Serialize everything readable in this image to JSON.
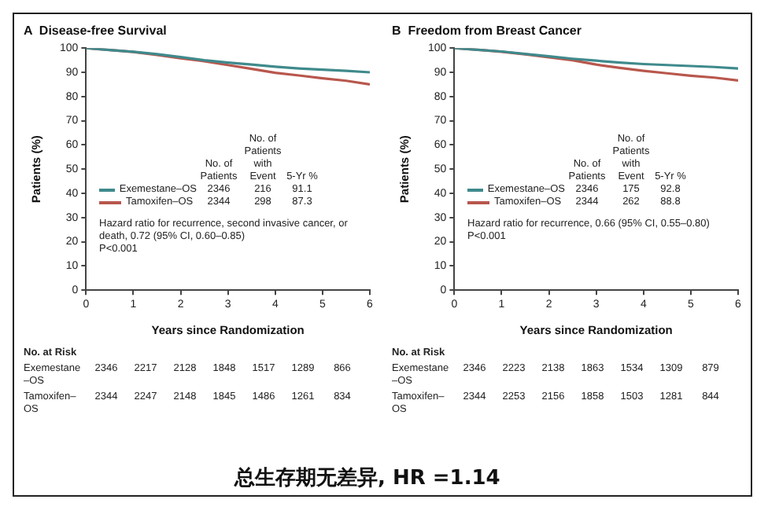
{
  "chart_data": [
    {
      "type": "line",
      "title": "A  Disease-free Survival",
      "xlabel": "Years since Randomization",
      "ylabel": "Patients (%)",
      "xlim": [
        0,
        6
      ],
      "xticks": [
        0,
        1,
        2,
        3,
        4,
        5,
        6
      ],
      "ylim": [
        0,
        100
      ],
      "yticks": [
        0,
        10,
        20,
        30,
        40,
        50,
        60,
        70,
        80,
        90,
        100
      ],
      "grid": false,
      "legend": "bottom left",
      "marker": "none",
      "line_style": "solid",
      "x": [
        0,
        0.5,
        1,
        1.5,
        2,
        2.5,
        3,
        3.5,
        4,
        4.5,
        5,
        5.5,
        6
      ],
      "series": [
        {
          "name": "Exemestane–OS",
          "color": "#3f8a8c",
          "values": [
            100,
            99.2,
            98.5,
            97.5,
            96.3,
            95,
            94,
            93.2,
            92.3,
            91.6,
            91.1,
            90.6,
            90
          ]
        },
        {
          "name": "Tamoxifen–OS",
          "color": "#b8574d",
          "values": [
            100,
            99.2,
            98.4,
            97.2,
            95.8,
            94.6,
            93,
            91.4,
            89.8,
            88.7,
            87.5,
            86.5,
            85
          ]
        }
      ],
      "annotations": [
        "No. of Patients",
        "No. of Patients with Event",
        "5-Yr %",
        "2346",
        "216",
        "91.1",
        "2344",
        "298",
        "87.3",
        "Hazard ratio for recurrence, second invasive cancer, or death, 0.72 (95% CI, 0.60–0.85)",
        "P<0.001",
        "No. at Risk",
        "2346",
        "2217",
        "2128",
        "1848",
        "1517",
        "1289",
        "866",
        "2344",
        "2247",
        "2148",
        "1845",
        "1486",
        "1261",
        "834"
      ]
    },
    {
      "type": "line",
      "title": "B  Freedom from Breast Cancer",
      "xlabel": "Years since Randomization",
      "ylabel": "Patients (%)",
      "xlim": [
        0,
        6
      ],
      "xticks": [
        0,
        1,
        2,
        3,
        4,
        5,
        6
      ],
      "ylim": [
        0,
        100
      ],
      "yticks": [
        0,
        10,
        20,
        30,
        40,
        50,
        60,
        70,
        80,
        90,
        100
      ],
      "grid": false,
      "legend": "bottom left",
      "marker": "none",
      "line_style": "solid",
      "x": [
        0,
        0.5,
        1,
        1.5,
        2,
        2.5,
        3,
        3.5,
        4,
        4.5,
        5,
        5.5,
        6
      ],
      "series": [
        {
          "name": "Exemestane–OS",
          "color": "#3f8a8c",
          "values": [
            100,
            99.3,
            98.6,
            97.6,
            96.6,
            95.6,
            94.8,
            94,
            93.4,
            93,
            92.6,
            92.2,
            91.6
          ]
        },
        {
          "name": "Tamoxifen–OS",
          "color": "#b8574d",
          "values": [
            100,
            99.3,
            98.5,
            97.4,
            96.2,
            95,
            93.2,
            91.8,
            90.6,
            89.6,
            88.6,
            87.8,
            86.6
          ]
        }
      ],
      "annotations": [
        "No. of Patients",
        "No. of Patients with Event",
        "5-Yr %",
        "2346",
        "175",
        "92.8",
        "2344",
        "262",
        "88.8",
        "Hazard ratio for recurrence, 0.66 (95% CI, 0.55–0.80)",
        "P<0.001",
        "No. at Risk",
        "2346",
        "2223",
        "2138",
        "1863",
        "1534",
        "1309",
        "879",
        "2344",
        "2253",
        "2156",
        "1858",
        "1503",
        "1281",
        "844",
        "总生存期无差异, HR =1.14"
      ]
    }
  ]
}
